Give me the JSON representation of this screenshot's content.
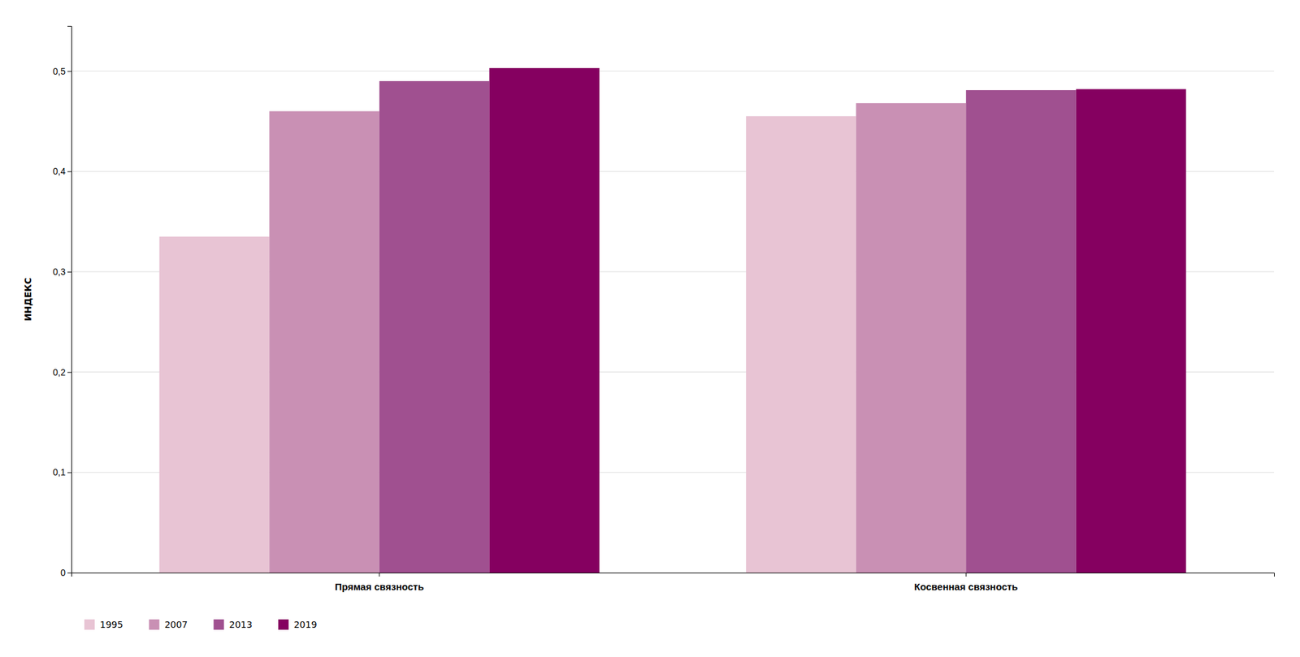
{
  "chart_data": {
    "type": "bar",
    "ylabel": "ИНДЕКС",
    "categories": [
      "Прямая связность",
      "Косвенная связность"
    ],
    "series": [
      {
        "name": "1995",
        "color": "#e8c4d4",
        "values": [
          0.335,
          0.455
        ]
      },
      {
        "name": "2007",
        "color": "#c990b4",
        "values": [
          0.46,
          0.468
        ]
      },
      {
        "name": "2013",
        "color": "#a05090",
        "values": [
          0.49,
          0.481
        ]
      },
      {
        "name": "2019",
        "color": "#850060",
        "values": [
          0.503,
          0.482
        ]
      }
    ],
    "ylim": [
      0,
      0.545
    ],
    "yticks": [
      0,
      {
        "value": 0.1,
        "label": "0,1"
      },
      {
        "value": 0.2,
        "label": "0,2"
      },
      {
        "value": 0.3,
        "label": "0,3"
      },
      {
        "value": 0.4,
        "label": "0,4"
      },
      {
        "value": 0.5,
        "label": "0,5"
      }
    ],
    "grid": true,
    "legend": "bottom"
  }
}
